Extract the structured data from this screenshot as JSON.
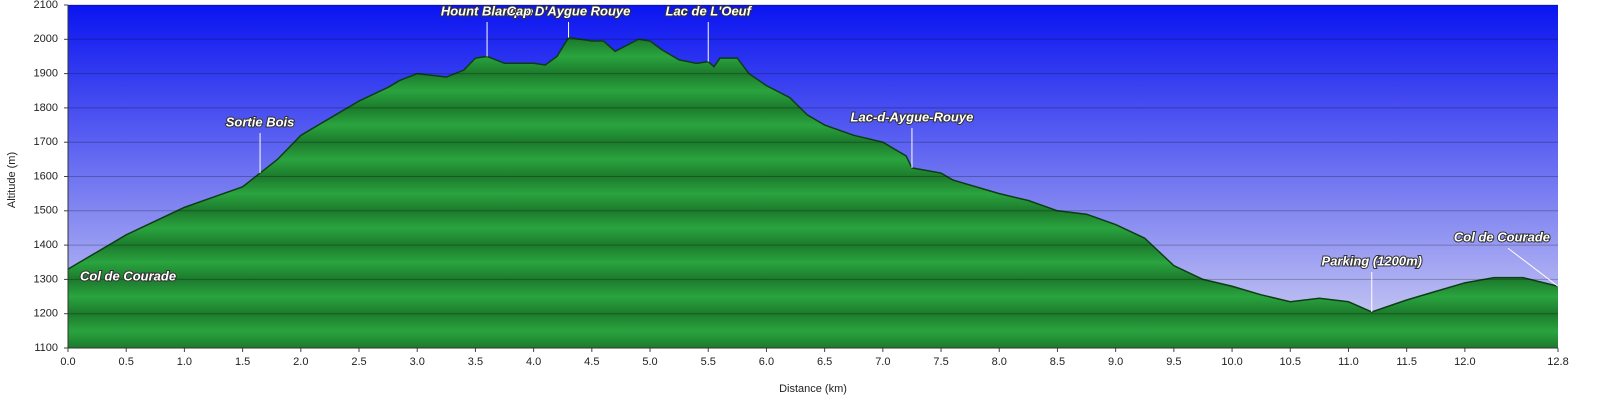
{
  "chart_data": {
    "type": "area",
    "x_label": "Distance (km)",
    "y_label": "Altitude (m)",
    "x": [
      0,
      0.1,
      0.25,
      0.5,
      0.75,
      1.0,
      1.25,
      1.5,
      1.65,
      1.8,
      2.0,
      2.25,
      2.5,
      2.75,
      2.85,
      3.0,
      3.25,
      3.4,
      3.5,
      3.6,
      3.75,
      4.0,
      4.1,
      4.2,
      4.3,
      4.4,
      4.5,
      4.6,
      4.7,
      4.9,
      5.0,
      5.1,
      5.25,
      5.4,
      5.5,
      5.55,
      5.6,
      5.75,
      5.85,
      6.0,
      6.2,
      6.35,
      6.5,
      6.75,
      7.0,
      7.2,
      7.25,
      7.5,
      7.6,
      8.0,
      8.25,
      8.5,
      8.75,
      9.0,
      9.25,
      9.5,
      9.75,
      10.0,
      10.25,
      10.5,
      10.75,
      11.0,
      11.2,
      11.5,
      11.75,
      12.0,
      12.25,
      12.5,
      12.8
    ],
    "values": [
      1330,
      1350,
      1380,
      1430,
      1470,
      1510,
      1540,
      1570,
      1610,
      1650,
      1720,
      1770,
      1820,
      1860,
      1880,
      1900,
      1890,
      1910,
      1945,
      1950,
      1930,
      1930,
      1925,
      1950,
      2005,
      2000,
      1995,
      1995,
      1965,
      2000,
      1995,
      1970,
      1940,
      1930,
      1935,
      1920,
      1945,
      1945,
      1900,
      1865,
      1830,
      1780,
      1750,
      1720,
      1700,
      1660,
      1625,
      1610,
      1590,
      1550,
      1530,
      1500,
      1490,
      1460,
      1420,
      1340,
      1300,
      1280,
      1255,
      1235,
      1245,
      1235,
      1205,
      1240,
      1265,
      1290,
      1305,
      1305,
      1280
    ],
    "color": "#229a38",
    "xlim": [
      0,
      12.8
    ],
    "xticks": [
      {
        "value": 0,
        "label": "0.0"
      },
      0.5,
      {
        "value": 1,
        "label": "1.0"
      },
      1.5,
      {
        "value": 2,
        "label": "2.0"
      },
      2.5,
      {
        "value": 3,
        "label": "3.0"
      },
      3.5,
      {
        "value": 4,
        "label": "4.0"
      },
      4.5,
      {
        "value": 5,
        "label": "5.0"
      },
      5.5,
      {
        "value": 6,
        "label": "6.0"
      },
      6.5,
      {
        "value": 7,
        "label": "7.0"
      },
      7.5,
      {
        "value": 8,
        "label": "8.0"
      },
      8.5,
      {
        "value": 9,
        "label": "9.0"
      },
      9.5,
      {
        "value": 10,
        "label": "10.0"
      },
      10.5,
      {
        "value": 11,
        "label": "11.0"
      },
      11.5,
      {
        "value": 12,
        "label": "12.0"
      },
      12.8
    ],
    "ylim": [
      1100,
      2100
    ],
    "yticks": [
      1100,
      1200,
      1300,
      1400,
      1500,
      1600,
      1700,
      1800,
      1900,
      2000,
      2100
    ],
    "grid": true,
    "annotations": [
      {
        "text": "Col de Courade",
        "x": 0
      },
      {
        "text": "Sortie Bois",
        "x": 1.65
      },
      {
        "text": "Hount Blanque",
        "x": 3.6
      },
      {
        "text": "Cap D'Aygue Rouye",
        "x": 4.3
      },
      {
        "text": "Lac de L'Oeuf",
        "x": 5.5
      },
      {
        "text": "Lac-d-Aygue-Rouye",
        "x": 7.25
      },
      {
        "text": "Parking (1200m)",
        "x": 11.2
      },
      {
        "text": "Col de Courade",
        "x": 12.8
      }
    ]
  }
}
